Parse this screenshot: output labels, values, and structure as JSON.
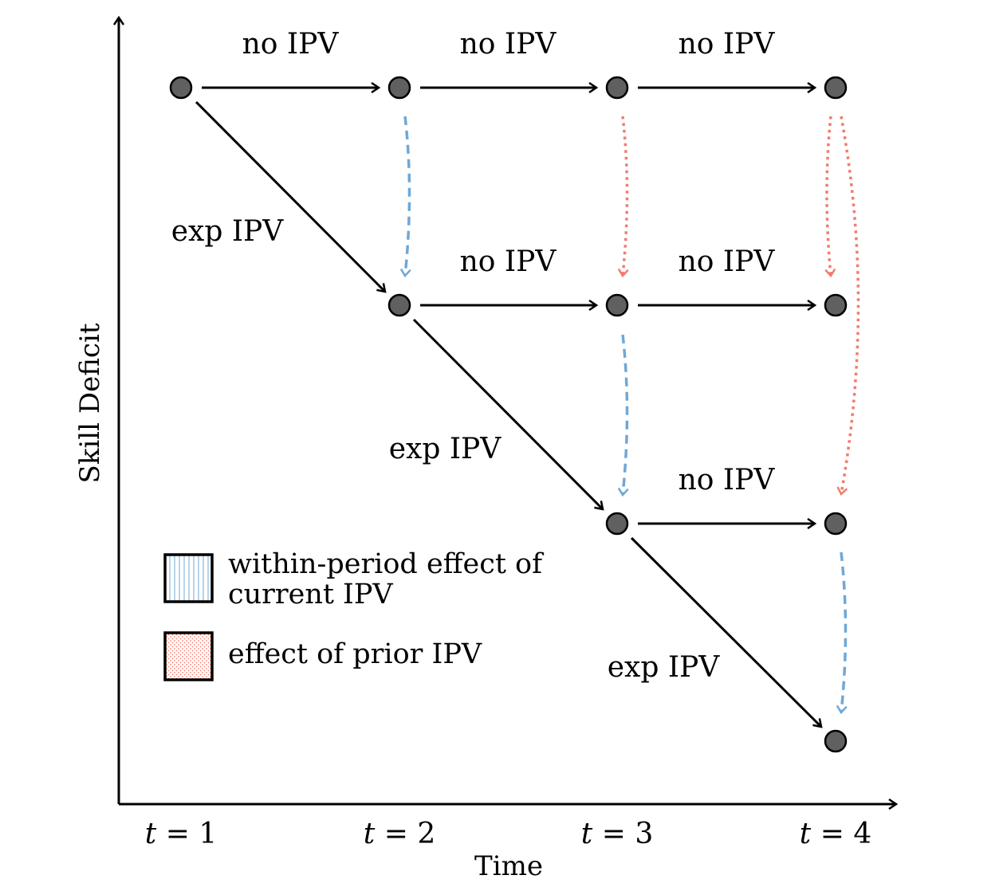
{
  "diagram": {
    "y_axis_title": "Skill Deficit",
    "x_axis_title": "Time",
    "ticks": [
      {
        "var": "t",
        "op": " = ",
        "num": "1"
      },
      {
        "var": "t",
        "op": " = ",
        "num": "2"
      },
      {
        "var": "t",
        "op": " = ",
        "num": "3"
      },
      {
        "var": "t",
        "op": " = ",
        "num": "4"
      }
    ],
    "edge_labels": {
      "no_ipv": "no IPV",
      "exp_ipv": "exp IPV"
    },
    "legend": {
      "within_line1": "within-period effect of",
      "within_line2": "current IPV",
      "prior": "effect of prior IPV"
    },
    "colors": {
      "within_effect": "#6fa8d6",
      "prior_effect": "#f07c6e",
      "node": "#606060"
    }
  }
}
